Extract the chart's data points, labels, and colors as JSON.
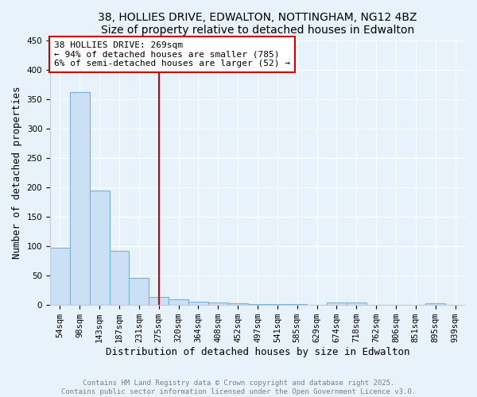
{
  "title_line1": "38, HOLLIES DRIVE, EDWALTON, NOTTINGHAM, NG12 4BZ",
  "title_line2": "Size of property relative to detached houses in Edwalton",
  "xlabel": "Distribution of detached houses by size in Edwalton",
  "ylabel": "Number of detached properties",
  "categories": [
    "54sqm",
    "98sqm",
    "143sqm",
    "187sqm",
    "231sqm",
    "275sqm",
    "320sqm",
    "364sqm",
    "408sqm",
    "452sqm",
    "497sqm",
    "541sqm",
    "585sqm",
    "629sqm",
    "674sqm",
    "718sqm",
    "762sqm",
    "806sqm",
    "851sqm",
    "895sqm",
    "939sqm"
  ],
  "values": [
    98,
    362,
    195,
    92,
    46,
    14,
    10,
    6,
    5,
    3,
    2,
    1,
    1,
    0,
    4,
    4,
    0,
    0,
    0,
    3,
    0
  ],
  "bar_color": "#cce0f5",
  "bar_edge_color": "#7ab0d4",
  "vline_x_index": 5,
  "vline_color": "#cc0000",
  "annotation_line1": "38 HOLLIES DRIVE: 269sqm",
  "annotation_line2": "← 94% of detached houses are smaller (785)",
  "annotation_line3": "6% of semi-detached houses are larger (52) →",
  "annotation_box_facecolor": "#ffffff",
  "annotation_box_edgecolor": "#cc0000",
  "ylim": [
    0,
    450
  ],
  "yticks": [
    0,
    50,
    100,
    150,
    200,
    250,
    300,
    350,
    400,
    450
  ],
  "bg_color": "#e8f2fa",
  "title_fontsize": 10,
  "subtitle_fontsize": 10,
  "axis_label_fontsize": 9,
  "tick_fontsize": 7.5,
  "annotation_fontsize": 8,
  "footer_fontsize": 6.5,
  "footer_line1": "Contains HM Land Registry data © Crown copyright and database right 2025.",
  "footer_line2": "Contains public sector information licensed under the Open Government Licence v3.0."
}
